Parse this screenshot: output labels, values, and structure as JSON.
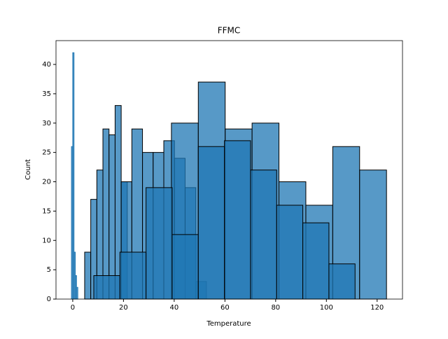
{
  "chart_data": {
    "type": "histogram",
    "title": "FFMC",
    "x_label": "Temperature",
    "y_label": "Count",
    "xlim": [
      -6.6,
      130
    ],
    "ylim": [
      0,
      44.06
    ],
    "xticks": [
      0,
      20,
      40,
      60,
      80,
      100,
      120
    ],
    "yticks": [
      0,
      5,
      10,
      15,
      20,
      25,
      30,
      35,
      40
    ],
    "alpha": 0.75,
    "series": [
      {
        "color": "#1f77b4",
        "edgecolor": "#1f77b4",
        "bins": [
          -0.5,
          0,
          0.5,
          1,
          1.5,
          2
        ],
        "values": [
          26,
          42,
          8,
          4,
          2
        ]
      },
      {
        "color": "#1f77b4",
        "edgecolor": "#000000",
        "bins": [
          4.7,
          7.1,
          9.5,
          11.9,
          14.3,
          16.7,
          19.1,
          21.5
        ],
        "values": [
          8,
          17,
          22,
          29,
          28,
          33,
          20
        ]
      },
      {
        "color": "#1f77b4",
        "edgecolor": "#000000",
        "bins": [
          19.1,
          23.3,
          27.5,
          31.7,
          35.9,
          40.1,
          44.3,
          48.5,
          52.7
        ],
        "values": [
          20,
          29,
          25,
          25,
          27,
          24,
          19,
          3
        ]
      },
      {
        "color": "#1f77b4",
        "edgecolor": "#000000",
        "bins": [
          38.9,
          49.5,
          60.1,
          70.7,
          81.3,
          91.9,
          102.5,
          113.1,
          123.7
        ],
        "values": [
          30,
          37,
          29,
          30,
          20,
          16,
          26,
          22
        ]
      },
      {
        "color": "#1f77b4",
        "edgecolor": "#000000",
        "bins": [
          8.3,
          18.6,
          28.9,
          39.2,
          49.5,
          59.8,
          70.1,
          80.4,
          90.7,
          101,
          111.3
        ],
        "values": [
          4,
          8,
          19,
          11,
          26,
          27,
          22,
          16,
          13,
          6
        ]
      }
    ]
  }
}
